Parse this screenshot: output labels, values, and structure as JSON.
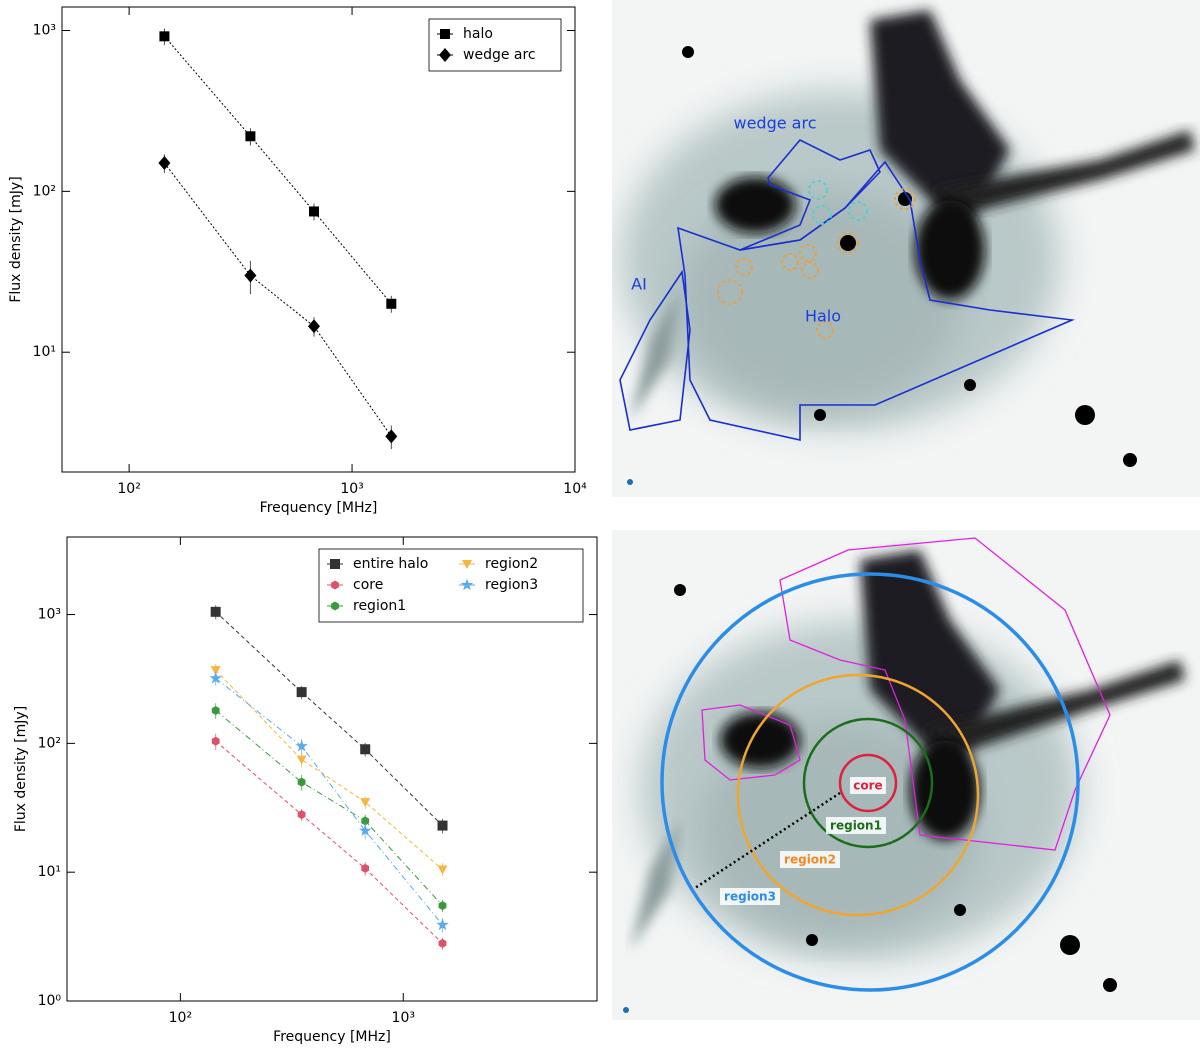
{
  "chart_data": [
    {
      "type": "line",
      "xlabel": "Frequency [MHz]",
      "ylabel": "Flux density [mJy]",
      "xscale": "log",
      "yscale": "log",
      "x": [
        144,
        350,
        675,
        1500
      ],
      "xlim": [
        50,
        10000
      ],
      "ylim": [
        1.8,
        1400
      ],
      "xticks": [
        {
          "value": 100,
          "label": "10²"
        },
        {
          "value": 1000,
          "label": "10³"
        },
        {
          "value": 10000,
          "label": "10⁴"
        }
      ],
      "yticks": [
        {
          "value": 10,
          "label": "10¹"
        },
        {
          "value": 100,
          "label": "10²"
        },
        {
          "value": 1000,
          "label": "10³"
        }
      ],
      "legend": "upper right",
      "legend_columns": 1,
      "series": [
        {
          "name": "halo",
          "color": "#000000",
          "marker": "square",
          "linestyle": "dotted",
          "values": [
            920,
            220,
            75,
            20
          ],
          "errors": [
            110,
            27,
            9,
            2.4
          ]
        },
        {
          "name": "wedge arc",
          "color": "#000000",
          "marker": "diamond",
          "linestyle": "dotted",
          "values": [
            150,
            30,
            14.5,
            3.0
          ],
          "errors": [
            20,
            7,
            2,
            0.5
          ]
        }
      ]
    },
    {
      "type": "line",
      "xlabel": "Frequency [MHz]",
      "ylabel": "Flux density [mJy]",
      "xscale": "log",
      "yscale": "log",
      "x": [
        144,
        350,
        675,
        1500
      ],
      "xlim": [
        31,
        7400
      ],
      "ylim": [
        1,
        4000
      ],
      "xticks": [
        {
          "value": 100,
          "label": "10²"
        },
        {
          "value": 1000,
          "label": "10³"
        }
      ],
      "yticks": [
        {
          "value": 1,
          "label": "10⁰"
        },
        {
          "value": 10,
          "label": "10¹"
        },
        {
          "value": 100,
          "label": "10²"
        },
        {
          "value": 1000,
          "label": "10³"
        }
      ],
      "legend": "upper right",
      "legend_columns": 2,
      "series": [
        {
          "name": "entire halo",
          "color": "#333333",
          "marker": "square",
          "linestyle": "dashed",
          "values": [
            1050,
            250,
            90,
            23
          ],
          "errors": [
            130,
            30,
            11,
            3
          ]
        },
        {
          "name": "core",
          "color": "#e0506a",
          "marker": "hexagon",
          "linestyle": "dashed",
          "values": [
            104,
            28,
            10.7,
            2.8
          ],
          "errors": [
            15,
            3,
            1.3,
            0.3
          ]
        },
        {
          "name": "region1",
          "color": "#3a9a3a",
          "marker": "hexagon",
          "linestyle": "dashdot",
          "values": [
            180,
            50,
            25,
            5.5
          ],
          "errors": [
            25,
            7,
            3,
            0.6
          ]
        },
        {
          "name": "region2",
          "color": "#f5b642",
          "marker": "triangle-down",
          "linestyle": "dashed",
          "values": [
            370,
            75,
            35,
            10.5
          ],
          "errors": [
            45,
            10,
            4,
            1.2
          ]
        },
        {
          "name": "region3",
          "color": "#5aabea",
          "marker": "star",
          "linestyle": "dashdot",
          "values": [
            320,
            95,
            21,
            3.9
          ],
          "errors": [
            40,
            13,
            3,
            0.5
          ]
        }
      ]
    }
  ],
  "images": [
    {
      "labels": [
        "wedge arc",
        "AI",
        "Halo"
      ]
    },
    {
      "labels": [
        "core",
        "region1",
        "region2",
        "region3"
      ]
    }
  ]
}
